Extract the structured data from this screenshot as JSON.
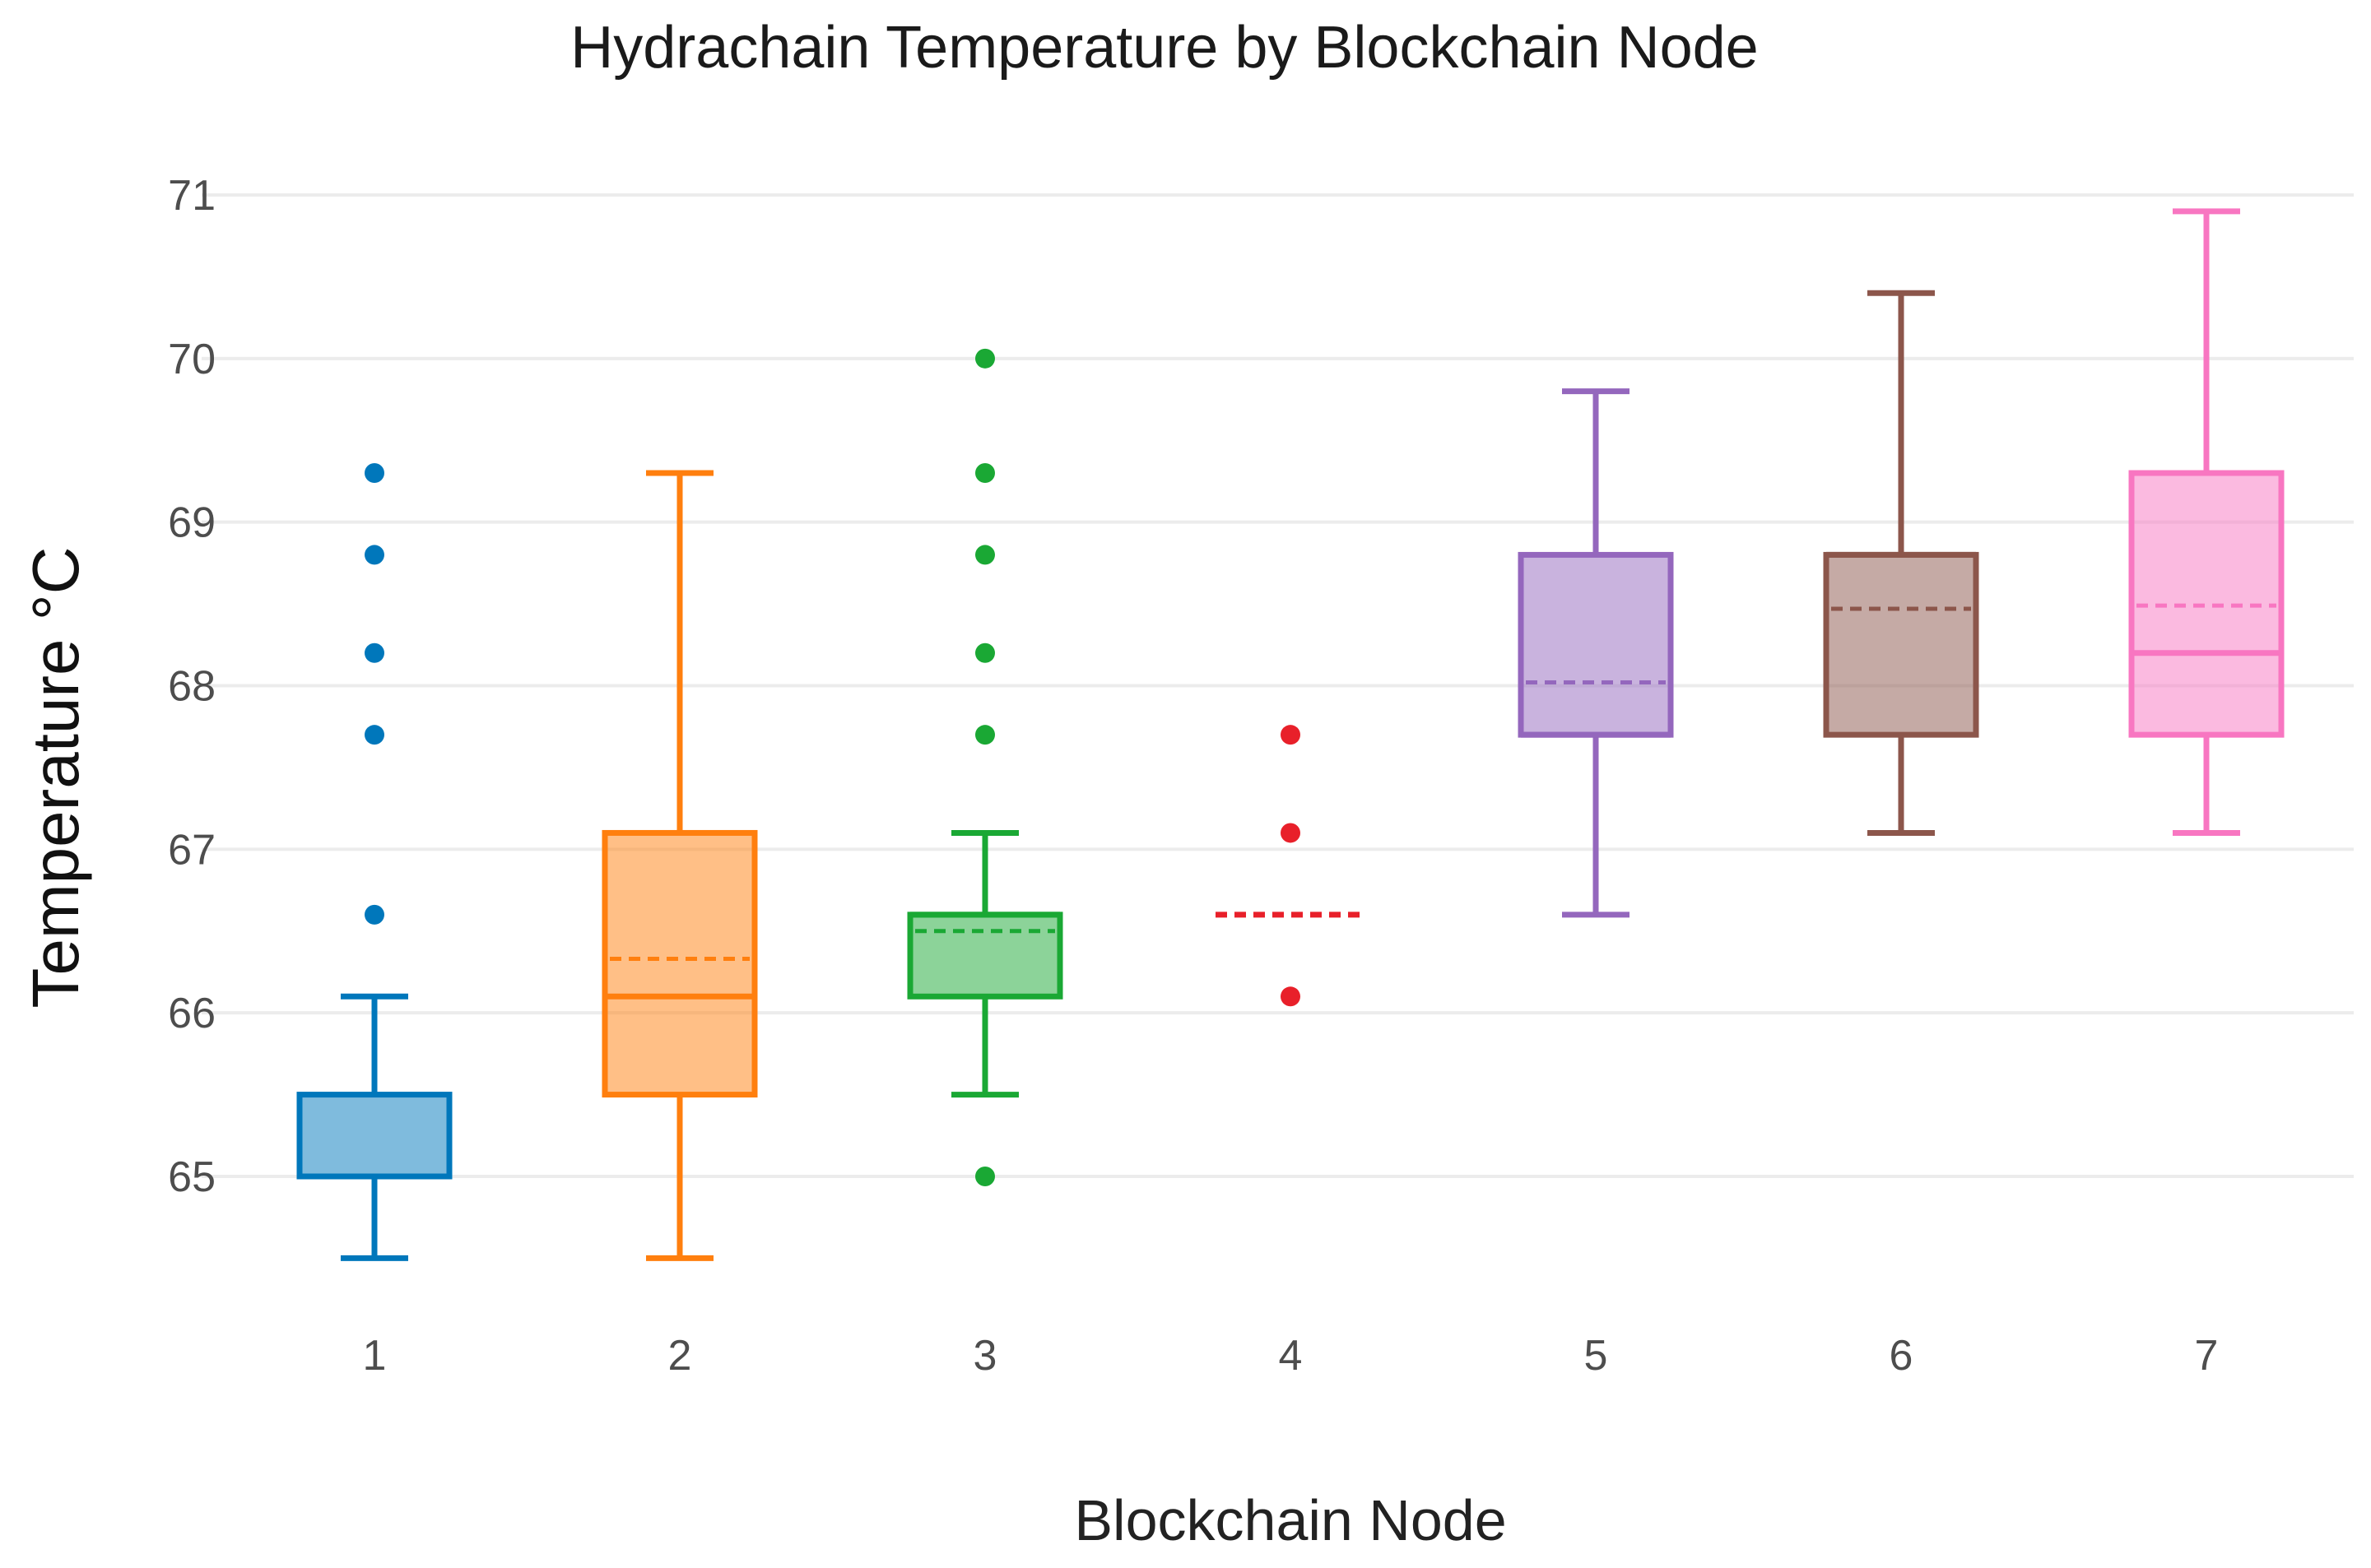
{
  "chart_data": {
    "type": "box",
    "title": "Hydrachain Temperature by Blockchain Node",
    "xlabel": "Blockchain Node",
    "ylabel": "Temperature °C",
    "ylim": [
      64.2,
      71.2
    ],
    "yticks": [
      65,
      66,
      67,
      68,
      69,
      70,
      71
    ],
    "grid": true,
    "legend": "none",
    "categories": [
      "1",
      "2",
      "3",
      "4",
      "5",
      "6",
      "7"
    ],
    "boxes": [
      {
        "category": "1",
        "color": "#0077BB",
        "whisker_low": 64.5,
        "q1": 65.0,
        "median": 65.0,
        "mean": 65.0,
        "q3": 65.5,
        "whisker_high": 66.1,
        "outliers": [
          66.6,
          67.7,
          68.2,
          68.8,
          69.3
        ]
      },
      {
        "category": "2",
        "color": "#FF7F0E",
        "whisker_low": 64.5,
        "q1": 65.5,
        "median": 66.1,
        "mean": 66.33,
        "q3": 67.1,
        "whisker_high": 69.3,
        "outliers": []
      },
      {
        "category": "3",
        "color": "#1AA834",
        "whisker_low": 65.5,
        "q1": 66.1,
        "median": 66.6,
        "mean": 66.5,
        "q3": 66.6,
        "whisker_high": 67.1,
        "outliers": [
          65.0,
          67.7,
          68.2,
          68.8,
          69.3,
          70.0
        ]
      },
      {
        "category": "4",
        "color": "#E8202A",
        "whisker_low": 66.6,
        "q1": 66.6,
        "median": 66.6,
        "mean": 66.6,
        "q3": 66.6,
        "whisker_high": 66.6,
        "outliers": [
          66.1,
          67.1,
          67.7
        ]
      },
      {
        "category": "5",
        "color": "#9467BD",
        "whisker_low": 66.6,
        "q1": 67.7,
        "median": 67.7,
        "mean": 68.02,
        "q3": 68.8,
        "whisker_high": 69.8,
        "outliers": []
      },
      {
        "category": "6",
        "color": "#8C564B",
        "whisker_low": 67.1,
        "q1": 67.7,
        "median": 68.8,
        "mean": 68.47,
        "q3": 68.8,
        "whisker_high": 70.4,
        "outliers": []
      },
      {
        "category": "7",
        "color": "#F876C1",
        "whisker_low": 67.1,
        "q1": 67.7,
        "median": 68.2,
        "mean": 68.49,
        "q3": 69.3,
        "whisker_high": 70.9,
        "outliers": []
      }
    ]
  }
}
